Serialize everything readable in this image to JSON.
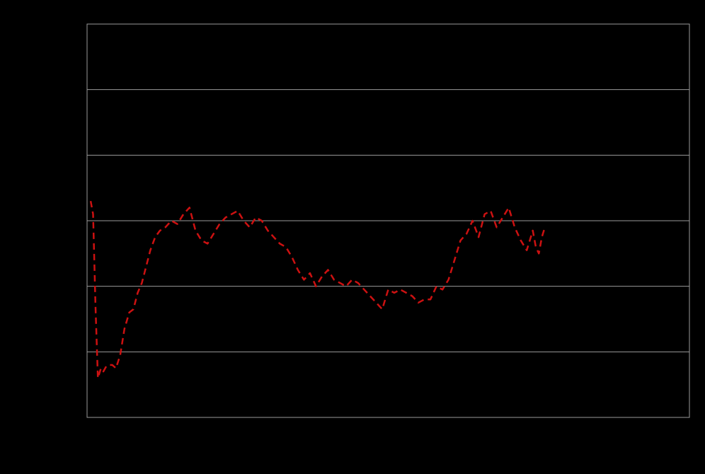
{
  "chart_data": {
    "type": "line",
    "grid": true,
    "ylim": [
      0,
      6
    ],
    "y_gridlines": [
      1,
      2,
      3,
      4,
      5
    ],
    "xlim": [
      0,
      100
    ],
    "series": [
      {
        "color": "#cc1111",
        "style": "dashed",
        "x": [
          0.6,
          1.0,
          1.4,
          1.8,
          2.3,
          2.7,
          3.2,
          3.7,
          4.2,
          4.8,
          5.5,
          6.2,
          7.0,
          7.7,
          8.4,
          9.1,
          9.8,
          10.5,
          11.3,
          12.1,
          13.0,
          14.0,
          15.0,
          16.0,
          17.0,
          18.0,
          19.0,
          20.0,
          21.0,
          22.0,
          23.0,
          24.0,
          25.0,
          26.0,
          27.0,
          28.0,
          29.0,
          30.0,
          31.0,
          32.0,
          33.0,
          34.0,
          35.0,
          36.0,
          37.0,
          38.0,
          39.0,
          40.0,
          41.0,
          42.0,
          43.0,
          44.0,
          45.0,
          46.0,
          47.0,
          48.0,
          49.0,
          50.0,
          51.0,
          52.0,
          53.0,
          54.0,
          55.0,
          56.0,
          57.0,
          58.0,
          59.0,
          60.0,
          61.0,
          62.0,
          63.0,
          64.0,
          65.0,
          66.0,
          67.0,
          68.0,
          69.0,
          70.0,
          71.0,
          72.0,
          73.0,
          73.5,
          74.0,
          74.5,
          75.0,
          75.5,
          76.0
        ],
        "y": [
          3.3,
          3.1,
          1.7,
          0.6,
          0.75,
          0.7,
          0.78,
          0.8,
          0.8,
          0.75,
          0.95,
          1.35,
          1.6,
          1.65,
          1.9,
          2.05,
          2.3,
          2.55,
          2.75,
          2.85,
          2.9,
          3.0,
          2.95,
          3.1,
          3.2,
          2.85,
          2.7,
          2.65,
          2.8,
          2.95,
          3.05,
          3.1,
          3.15,
          3.0,
          2.9,
          3.05,
          3.0,
          2.85,
          2.75,
          2.65,
          2.6,
          2.45,
          2.25,
          2.1,
          2.2,
          2.0,
          2.15,
          2.25,
          2.1,
          2.05,
          2.0,
          2.1,
          2.05,
          1.95,
          1.85,
          1.75,
          1.65,
          1.95,
          1.9,
          1.95,
          1.9,
          1.85,
          1.75,
          1.8,
          1.8,
          2.0,
          1.95,
          2.1,
          2.4,
          2.7,
          2.8,
          3.0,
          2.75,
          3.1,
          3.15,
          2.9,
          3.05,
          3.2,
          2.9,
          2.7,
          2.55,
          2.7,
          2.85,
          2.6,
          2.5,
          2.75,
          2.9
        ]
      }
    ]
  }
}
